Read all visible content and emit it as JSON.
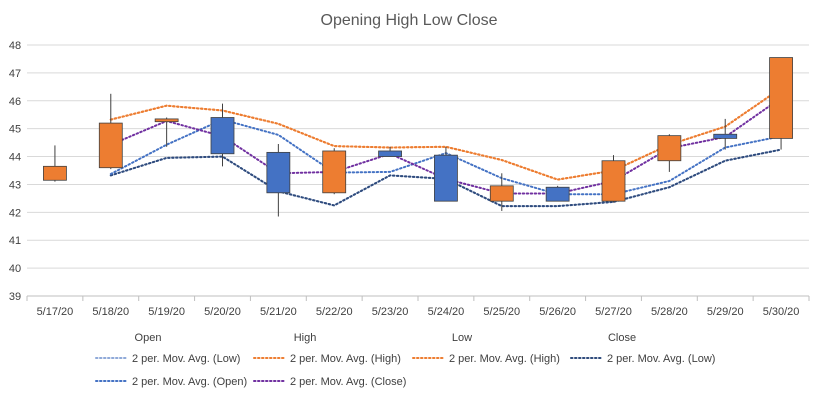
{
  "chart_data": {
    "type": "stock-ohlc",
    "title": "Opening High Low Close",
    "categories": [
      "5/17/20",
      "5/18/20",
      "5/19/20",
      "5/20/20",
      "5/21/20",
      "5/22/20",
      "5/23/20",
      "5/24/20",
      "5/25/20",
      "5/26/20",
      "5/27/20",
      "5/28/20",
      "5/29/20",
      "5/30/20"
    ],
    "open": [
      43.15,
      43.6,
      45.25,
      45.4,
      44.15,
      42.7,
      44.2,
      44.05,
      42.4,
      42.9,
      42.4,
      43.85,
      44.8,
      44.65
    ],
    "high": [
      44.4,
      46.25,
      45.4,
      45.9,
      44.45,
      44.3,
      44.35,
      44.35,
      43.4,
      42.95,
      44.05,
      44.8,
      45.35,
      47.55
    ],
    "low": [
      43.1,
      43.55,
      44.35,
      43.65,
      41.85,
      42.65,
      44.0,
      42.4,
      42.05,
      42.4,
      42.35,
      43.45,
      44.25,
      44.25
    ],
    "close": [
      43.65,
      45.2,
      45.35,
      44.1,
      42.7,
      44.2,
      44.0,
      42.4,
      42.95,
      42.4,
      43.85,
      44.75,
      44.65,
      47.55
    ],
    "y_axis": {
      "min": 39,
      "max": 48,
      "step": 1,
      "ticks": [
        "39",
        "40",
        "41",
        "42",
        "43",
        "44",
        "45",
        "46",
        "47",
        "48"
      ]
    },
    "series_labels": [
      "Open",
      "High",
      "Low",
      "Close"
    ],
    "moving_averages": [
      {
        "name": "2 per. Mov. Avg. (Low)",
        "source": "low",
        "color": "#8fa9d8"
      },
      {
        "name": "2 per. Mov. Avg. (High)",
        "source": "high",
        "color": "#ed7d31"
      },
      {
        "name": "2 per. Mov. Avg. (High)",
        "source": "high",
        "color": "#ed7d31"
      },
      {
        "name": "2 per. Mov. Avg. (Low)",
        "source": "low",
        "color": "#2f4b7c"
      },
      {
        "name": "2 per. Mov. Avg. (Open)",
        "source": "open",
        "color": "#4472c4"
      },
      {
        "name": "2 per. Mov. Avg. (Close)",
        "source": "close",
        "color": "#7030a0"
      }
    ],
    "colors": {
      "up": "#ed7d31",
      "down": "#4472c4",
      "wick": "#404040",
      "grid": "#d9d9d9",
      "box_border": "#404040"
    },
    "grid": true,
    "legend_position": "bottom"
  }
}
